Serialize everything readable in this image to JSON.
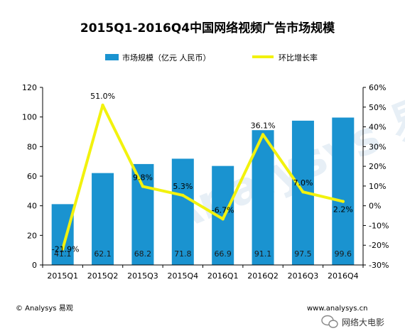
{
  "chart_data": {
    "type": "bar",
    "title": "2015Q1-2016Q4中国网络视频广告市场规模",
    "categories": [
      "2015Q1",
      "2015Q2",
      "2015Q3",
      "2015Q4",
      "2016Q1",
      "2016Q2",
      "2016Q3",
      "2016Q4"
    ],
    "series": [
      {
        "name": "市场规模（亿元 人民币）",
        "type": "bar",
        "axis": "left",
        "values": [
          41.1,
          62.1,
          68.2,
          71.8,
          66.9,
          91.1,
          97.5,
          99.6
        ],
        "labels": [
          "41.1",
          "62.1",
          "68.2",
          "71.8",
          "66.9",
          "91.1",
          "97.5",
          "99.6"
        ]
      },
      {
        "name": "环比增长率",
        "type": "line",
        "axis": "right",
        "values": [
          -21.9,
          51.0,
          9.8,
          5.3,
          -6.7,
          36.1,
          7.0,
          2.2
        ],
        "labels": [
          "-21.9%",
          "51.0%",
          "9.8%",
          "5.3%",
          "-6.7%",
          "36.1%",
          "7.0%",
          "2.2%"
        ]
      }
    ],
    "y_left": {
      "ylim": [
        0,
        120
      ],
      "ticks": [
        "0",
        "20",
        "40",
        "60",
        "80",
        "100",
        "120"
      ]
    },
    "y_right": {
      "ylim": [
        -30,
        60
      ],
      "ticks": [
        "-30%",
        "-20%",
        "-10%",
        "0%",
        "10%",
        "20%",
        "30%",
        "40%",
        "50%",
        "60%"
      ]
    },
    "legend_position": "top",
    "grid": false,
    "colors": {
      "bar": "#1a93d0",
      "line": "#f2f20d",
      "axis": "#000000"
    }
  },
  "footer": {
    "source": "© Analysys 易观",
    "url": "www.analysys.cn",
    "account": "网络大电影"
  },
  "watermark": "Analysys 易观"
}
